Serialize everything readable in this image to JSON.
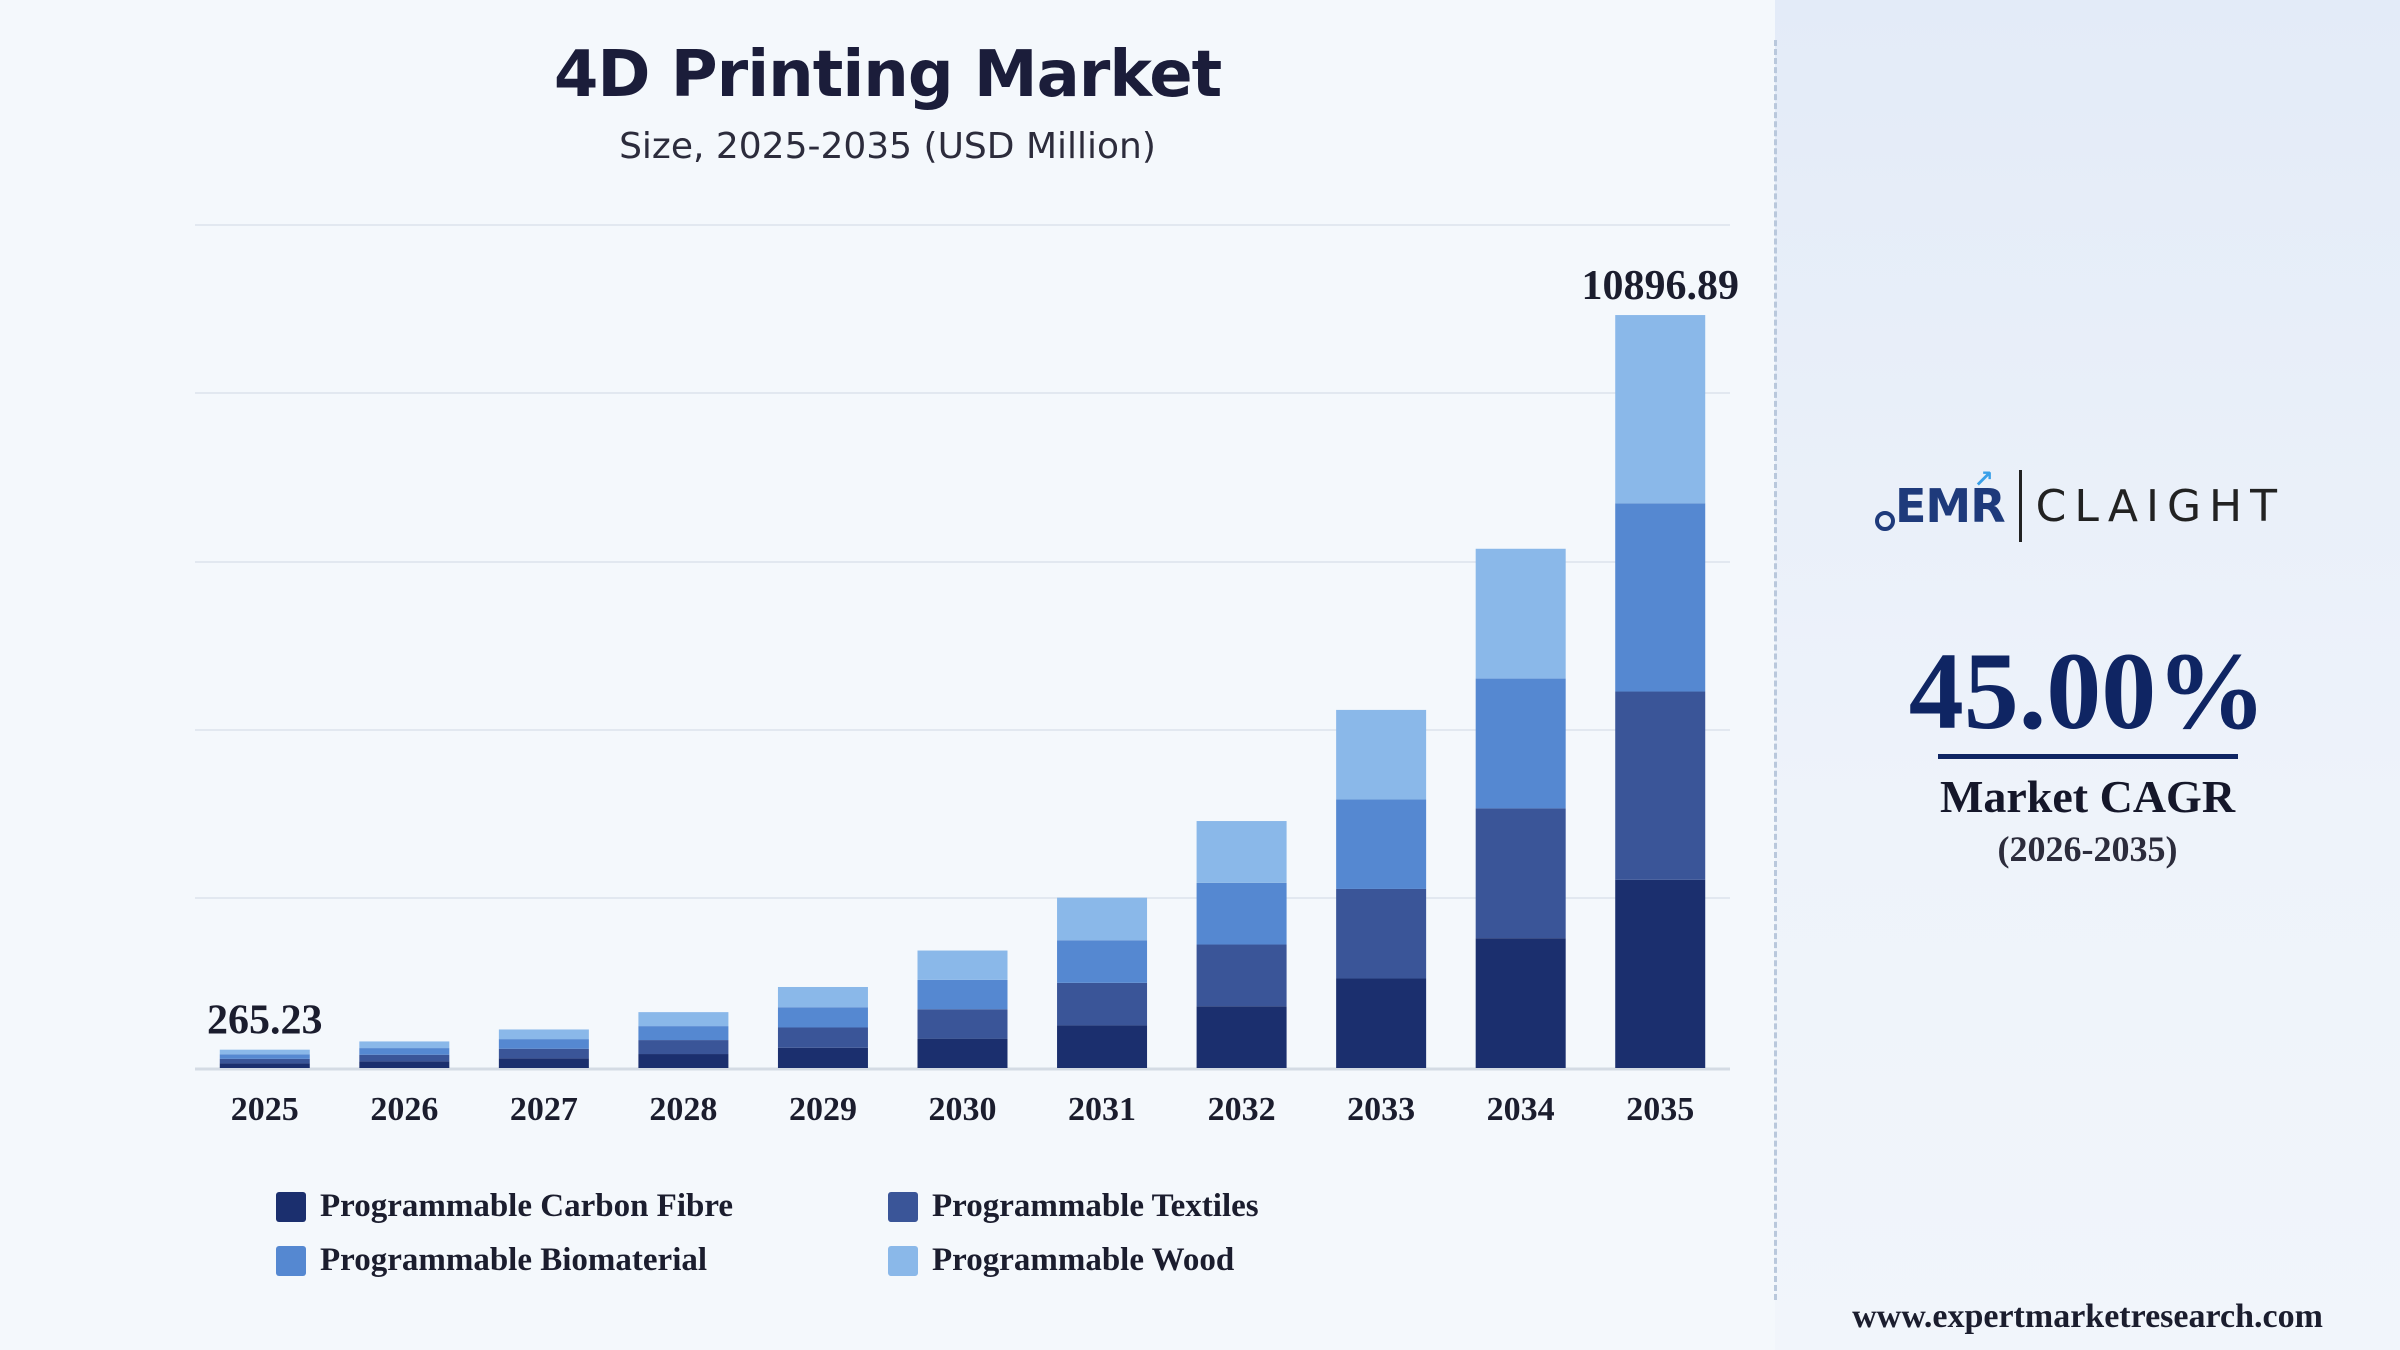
{
  "title": "4D Printing Market",
  "subtitle": "Size, 2025-2035 (USD Million)",
  "chart_data": {
    "type": "bar",
    "stacked": true,
    "title": "4D Printing Market",
    "subtitle": "Size, 2025-2035 (USD Million)",
    "xlabel": "",
    "ylabel": "",
    "categories": [
      "2025",
      "2026",
      "2027",
      "2028",
      "2029",
      "2030",
      "2031",
      "2032",
      "2033",
      "2034",
      "2035"
    ],
    "series": [
      {
        "name": "Programmable Carbon Fibre",
        "color": "#1b2f6e",
        "values": [
          66.3,
          96.1,
          139.4,
          202.1,
          293.1,
          425.0,
          616.2,
          893.5,
          1295.6,
          1878.6,
          2724.2
        ]
      },
      {
        "name": "Programmable Textiles",
        "color": "#3a5598",
        "values": [
          66.3,
          96.1,
          139.4,
          202.1,
          293.1,
          425.0,
          616.2,
          893.5,
          1295.6,
          1878.6,
          2724.2
        ]
      },
      {
        "name": "Programmable Biomaterial",
        "color": "#5588d1",
        "values": [
          66.3,
          96.1,
          139.4,
          202.1,
          293.1,
          425.0,
          616.2,
          893.5,
          1295.6,
          1878.6,
          2724.2
        ]
      },
      {
        "name": "Programmable Wood",
        "color": "#8ab8e9",
        "values": [
          66.3,
          96.1,
          139.4,
          202.1,
          293.1,
          425.0,
          616.2,
          893.5,
          1295.6,
          1878.6,
          2724.2
        ]
      }
    ],
    "totals_labels": [
      {
        "category": "2025",
        "label": "265.23"
      },
      {
        "category": "2035",
        "label": "10896.89"
      }
    ],
    "ylim": [
      0,
      12200
    ],
    "grid": true,
    "legend": "bottom"
  },
  "cagr": {
    "value": "45.00%",
    "label": "Market CAGR",
    "period": "(2026-2035)"
  },
  "logo": {
    "left": "EMR",
    "right": "CLAIGHT"
  },
  "website": "www.expertmarketresearch.com"
}
